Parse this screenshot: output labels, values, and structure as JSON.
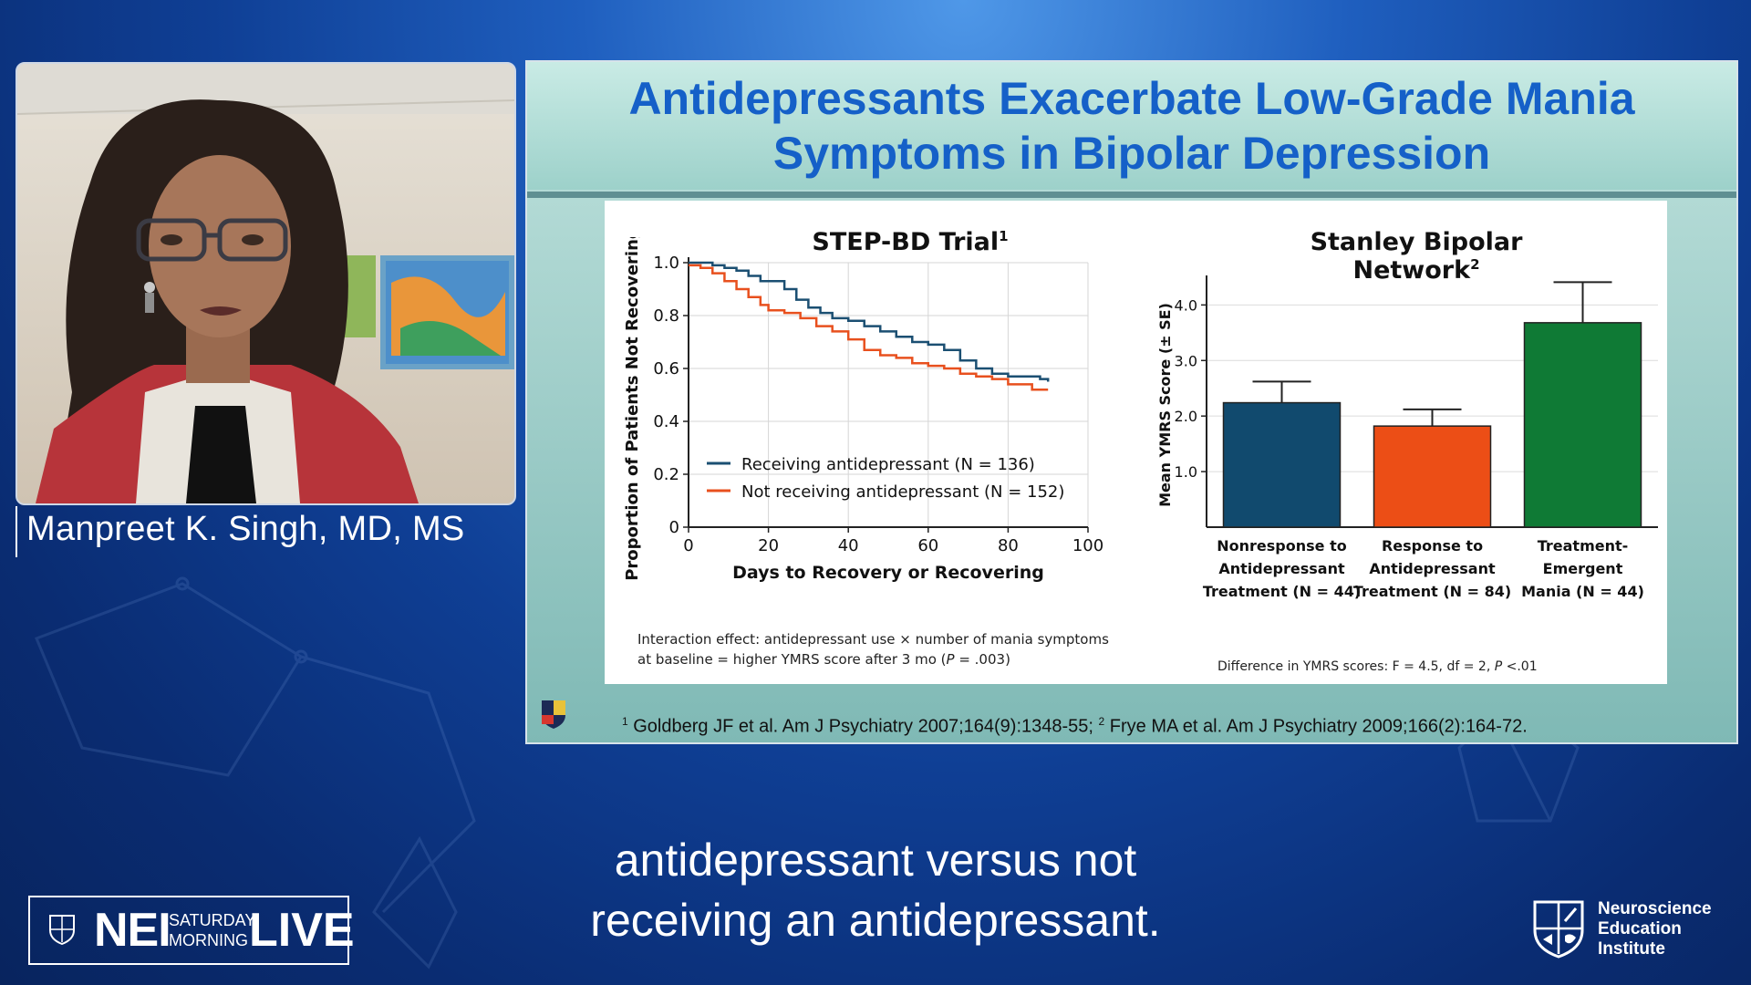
{
  "presenter": {
    "name": "Manpreet K. Singh, MD, MS"
  },
  "slide": {
    "title_line1": "Antidepressants Exacerbate Low-Grade Mania",
    "title_line2": "Symptoms in Bipolar Depression",
    "footnote_1": "Goldberg JF et al. Am J Psychiatry 2007;164(9):1348-55;",
    "footnote_2": "Frye MA et al. Am J Psychiatry 2009;166(2):164-72.",
    "footnote_marker_1": "1",
    "footnote_marker_2": "2"
  },
  "chart_data": [
    {
      "type": "line",
      "title": "STEP-BD Trial",
      "title_sup": "1",
      "xlabel": "Days to Recovery or Recovering",
      "ylabel": "Proportion of Patients Not Recovering",
      "xlim": [
        0,
        100
      ],
      "ylim": [
        0,
        1.0
      ],
      "x_ticks": [
        "0",
        "20",
        "40",
        "60",
        "80",
        "100"
      ],
      "y_ticks": [
        "0",
        "0.2",
        "0.4",
        "0.6",
        "0.8",
        "1.0"
      ],
      "grid": true,
      "legend_position": "bottom-left",
      "series": [
        {
          "name": "Receiving antidepressant (N = 136)",
          "color": "#1b4f72",
          "x": [
            0,
            3,
            6,
            9,
            12,
            15,
            18,
            20,
            24,
            27,
            30,
            33,
            36,
            40,
            44,
            48,
            52,
            56,
            60,
            64,
            68,
            72,
            76,
            80,
            84,
            88,
            90
          ],
          "y": [
            1.0,
            1.0,
            0.99,
            0.98,
            0.97,
            0.95,
            0.93,
            0.93,
            0.9,
            0.86,
            0.83,
            0.81,
            0.79,
            0.78,
            0.76,
            0.74,
            0.72,
            0.7,
            0.69,
            0.67,
            0.63,
            0.6,
            0.58,
            0.57,
            0.57,
            0.56,
            0.55
          ]
        },
        {
          "name": "Not receiving antidepressant (N = 152)",
          "color": "#e8501e",
          "x": [
            0,
            3,
            6,
            9,
            12,
            15,
            18,
            20,
            24,
            28,
            32,
            36,
            40,
            44,
            48,
            52,
            56,
            60,
            64,
            68,
            72,
            76,
            80,
            84,
            86,
            90
          ],
          "y": [
            0.99,
            0.98,
            0.96,
            0.93,
            0.9,
            0.87,
            0.84,
            0.82,
            0.81,
            0.79,
            0.76,
            0.74,
            0.71,
            0.67,
            0.65,
            0.64,
            0.62,
            0.61,
            0.6,
            0.58,
            0.57,
            0.56,
            0.54,
            0.54,
            0.52,
            0.52
          ]
        }
      ],
      "note_line1": "Interaction effect: antidepressant use × number of mania symptoms",
      "note_line2_prefix": "at baseline = higher YMRS score after 3 mo (",
      "note_line2_p": "P",
      "note_line2_suffix": " = .003)"
    },
    {
      "type": "bar",
      "title": "Stanley Bipolar Network",
      "title_sup": "2",
      "ylabel": "Mean YMRS Score (± SE)",
      "ylim": [
        0,
        4.4
      ],
      "y_ticks": [
        "1.0",
        "2.0",
        "3.0",
        "4.0"
      ],
      "y_tick_values": [
        1,
        2,
        3,
        4
      ],
      "grid": true,
      "categories": [
        [
          "Nonresponse to",
          "Antidepressant",
          "Treatment (N = 44)"
        ],
        [
          "Response to",
          "Antidepressant",
          "Treatment (N = 84)"
        ],
        [
          "Treatment-",
          "Emergent",
          "Mania (N = 44)"
        ]
      ],
      "values": [
        2.24,
        1.82,
        3.68
      ],
      "errors": [
        0.38,
        0.3,
        0.73
      ],
      "colors": [
        "#114a6e",
        "#ec4e16",
        "#0f7a35"
      ],
      "note_prefix": "Difference in YMRS scores: F = 4.5, df = 2, ",
      "note_p": "P",
      "note_suffix": " <.01"
    }
  ],
  "caption": {
    "line1": "antidepressant versus not",
    "line2": "receiving an antidepressant."
  },
  "branding": {
    "nei": "NEI",
    "saturday": "SATURDAY",
    "morning": "MORNING",
    "live": "LIVE",
    "institute_line1": "Neuroscience",
    "institute_line2": "Education",
    "institute_line3": "Institute"
  }
}
